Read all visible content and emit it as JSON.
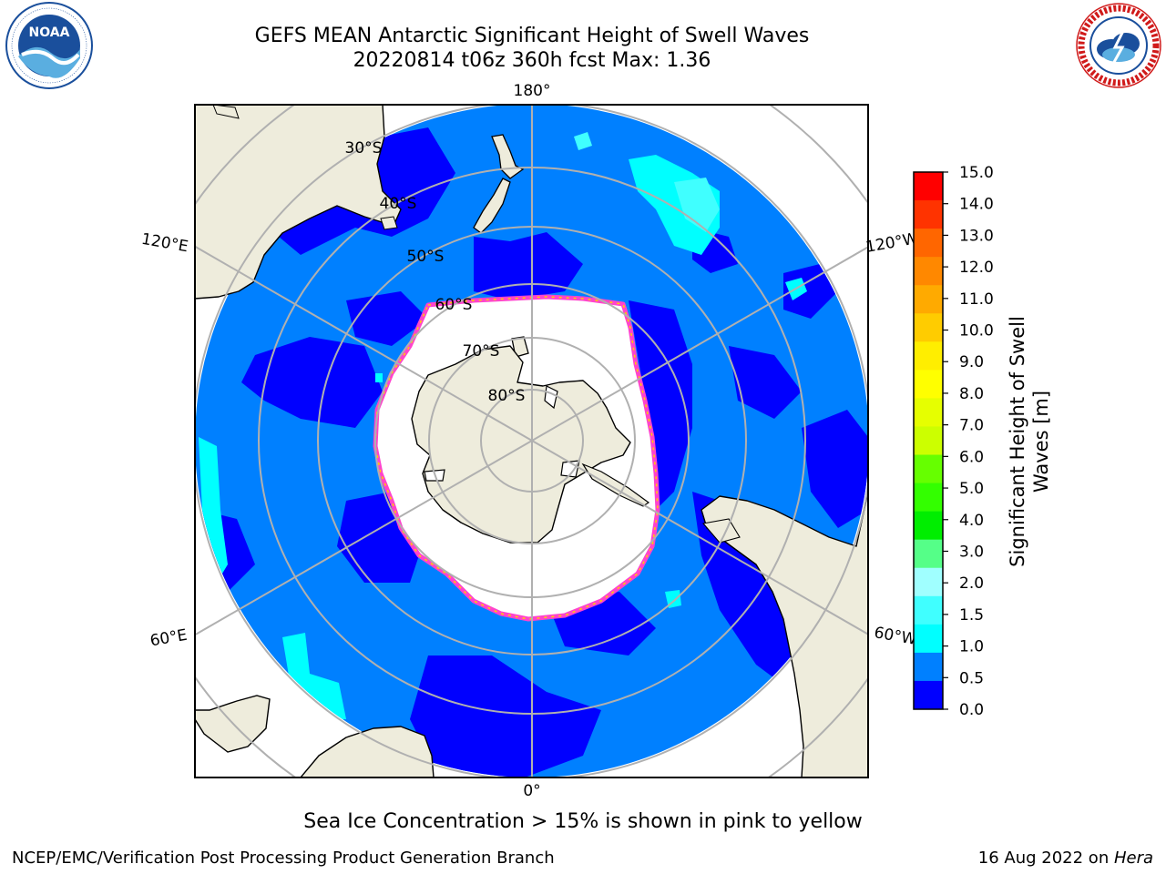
{
  "title": {
    "line1": "GEFS MEAN Antarctic Significant Height of Swell Waves",
    "line2": "20220814 t06z 360h fcst   Max: 1.36"
  },
  "logos": {
    "noaa_text": "NOAA",
    "noaa_ring": "NATIONAL OCEANIC AND ATMOSPHERIC ADMINISTRATION · U.S. DEPARTMENT OF COMMERCE",
    "nws_ring": "NATIONAL WEATHER SERVICE"
  },
  "map": {
    "projection": "south-polar-stereographic",
    "longitude_labels": [
      "180°",
      "120°E",
      "120°W",
      "60°E",
      "60°W",
      "0°"
    ],
    "latitude_labels": [
      "30°S",
      "40°S",
      "50°S",
      "60°S",
      "70°S",
      "80°S"
    ],
    "colors": {
      "land": "#eeecdc",
      "ocean_0_05": "#0000ff",
      "ocean_05_1": "#0080ff",
      "swell_1_15": "#00ffff",
      "swell_15_2": "#40ffff",
      "sea_ice": "#ffffff",
      "ice_edge": "#ff44cc",
      "ice_edge_inner": "#ffd000",
      "grid": "#b0b0b0"
    }
  },
  "colorbar": {
    "title": "Significant Height of Swell Waves [m]",
    "ticks": [
      "15.0",
      "14.0",
      "13.0",
      "12.0",
      "11.0",
      "10.0",
      "9.0",
      "8.0",
      "7.0",
      "6.0",
      "5.0",
      "4.0",
      "3.0",
      "2.0",
      "1.5",
      "1.0",
      "0.5",
      "0.0"
    ],
    "colors": [
      "#ff0000",
      "#ff3300",
      "#ff6600",
      "#ff8800",
      "#ffaa00",
      "#ffcc00",
      "#ffee00",
      "#ffff00",
      "#e6ff00",
      "#ccff00",
      "#66ff00",
      "#33ff00",
      "#00ee00",
      "#55ff88",
      "#a0ffff",
      "#40ffff",
      "#00ffff",
      "#0080ff",
      "#0000ff"
    ]
  },
  "footer": {
    "note": "Sea Ice Concentration > 15% is shown in pink to yellow",
    "credit": "NCEP/EMC/Verification Post Processing Product Generation Branch",
    "date": "16 Aug 2022 on ",
    "machine": "Hera"
  }
}
